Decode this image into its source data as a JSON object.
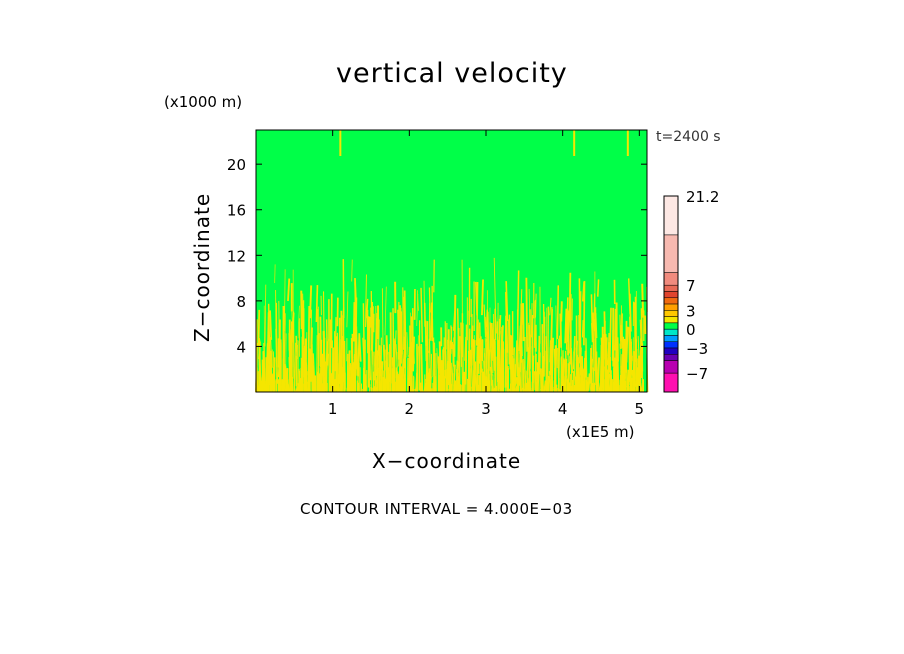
{
  "chart_data": {
    "type": "heatmap",
    "title": "vertical velocity",
    "y_unit": "(x1000 m)",
    "x_unit": "(x1E5 m)",
    "xlabel": "X−coordinate",
    "ylabel": "Z−coordinate",
    "time_label": "t=2400 s",
    "footer": "CONTOUR INTERVAL = 4.000E−03",
    "x_ticks": [
      "1",
      "2",
      "3",
      "4",
      "5"
    ],
    "x_tick_values": [
      1,
      2,
      3,
      4,
      5
    ],
    "y_ticks": [
      "4",
      "8",
      "12",
      "16",
      "20"
    ],
    "y_tick_values": [
      4,
      8,
      12,
      16,
      20
    ],
    "xlim": [
      0,
      5.1
    ],
    "ylim": [
      0,
      23
    ],
    "background_value_color": "#00ff48",
    "updraft_color": "#f5e600",
    "colorbar": {
      "tick_labels": [
        "21.2",
        "7",
        "3",
        "0",
        "−3",
        "−7"
      ],
      "tick_values": [
        21.2,
        7,
        3,
        0,
        -3,
        -7
      ],
      "range": [
        -10,
        21.2
      ],
      "levels": [
        {
          "from": 15,
          "to": 21.2,
          "color": "#fde8e4"
        },
        {
          "from": 9,
          "to": 15,
          "color": "#f7b9b0"
        },
        {
          "from": 7,
          "to": 9,
          "color": "#f08b7e"
        },
        {
          "from": 6,
          "to": 7,
          "color": "#e86a56"
        },
        {
          "from": 5,
          "to": 6,
          "color": "#e0442e"
        },
        {
          "from": 4,
          "to": 5,
          "color": "#f06a10"
        },
        {
          "from": 3,
          "to": 4,
          "color": "#ffa000"
        },
        {
          "from": 2,
          "to": 3,
          "color": "#ffc800"
        },
        {
          "from": 1,
          "to": 2,
          "color": "#f5e600"
        },
        {
          "from": 0,
          "to": 1,
          "color": "#00ff48"
        },
        {
          "from": -1,
          "to": 0,
          "color": "#00e6c8"
        },
        {
          "from": -2,
          "to": -1,
          "color": "#009cff"
        },
        {
          "from": -3,
          "to": -2,
          "color": "#0030ff"
        },
        {
          "from": -4,
          "to": -3,
          "color": "#2000c0"
        },
        {
          "from": -5,
          "to": -4,
          "color": "#6a00b0"
        },
        {
          "from": -7,
          "to": -5,
          "color": "#b800b0"
        },
        {
          "from": -10,
          "to": -7,
          "color": "#ff10b0"
        }
      ]
    }
  }
}
